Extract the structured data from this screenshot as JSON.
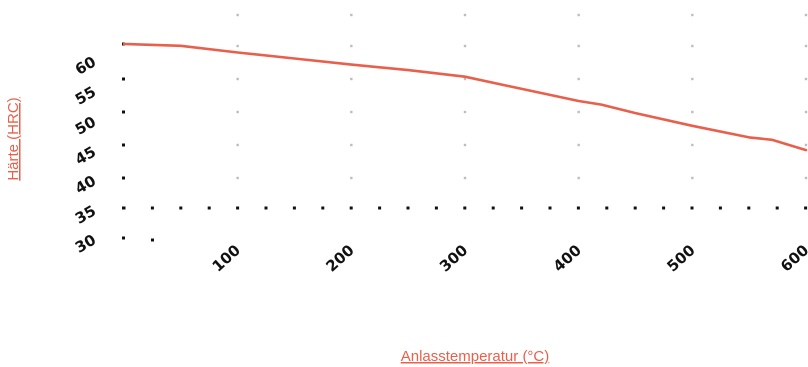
{
  "chart_data": {
    "type": "line",
    "title": "",
    "xlabel": "Anlasstemperatur (°C)",
    "ylabel": "Härte (HRC)",
    "x_ticks": [
      "100",
      "200",
      "300",
      "400",
      "500",
      "600"
    ],
    "y_ticks": [
      "30",
      "35",
      "40",
      "45",
      "50",
      "55",
      "60"
    ],
    "xlim": [
      0,
      600
    ],
    "ylim": [
      30,
      62
    ],
    "grid": true,
    "series": [
      {
        "color": "#e8604c",
        "x": [
          0,
          50,
          100,
          150,
          200,
          250,
          300,
          350,
          400,
          420,
          450,
          500,
          550,
          570,
          600
        ],
        "y": [
          62,
          61.7,
          60.6,
          59.6,
          58.6,
          57.7,
          56.6,
          54.6,
          52.6,
          52,
          50.6,
          48.5,
          46.6,
          46.2,
          44.5
        ]
      }
    ],
    "colors": {
      "line": "#e8604c",
      "axis_title": "#e8604c",
      "ticks": "#111111",
      "grid": "#bdbdbd"
    }
  }
}
